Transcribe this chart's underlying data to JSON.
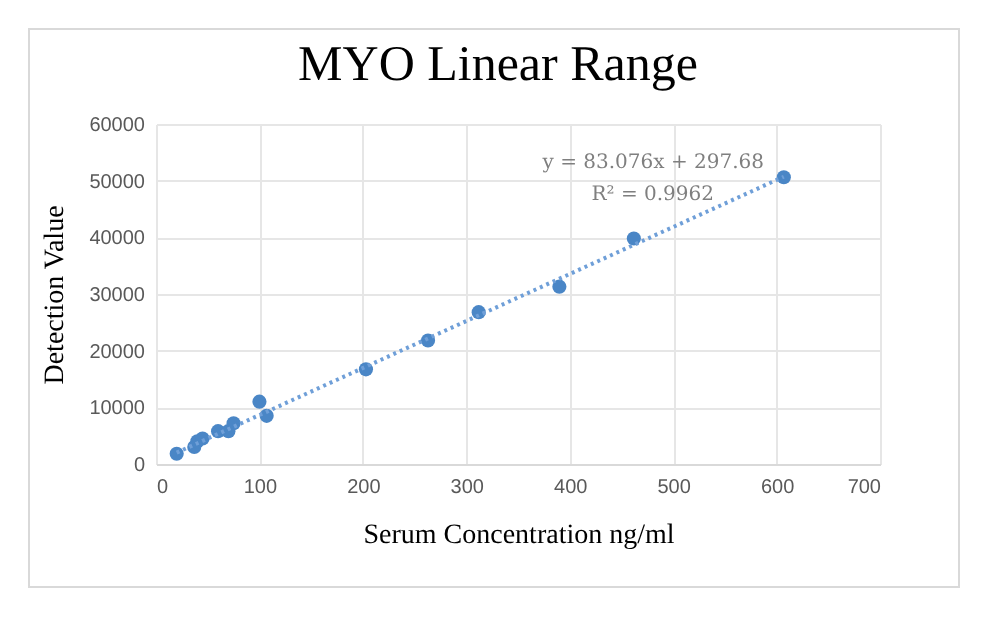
{
  "chart_data": {
    "type": "scatter",
    "title": "MYO Linear Range",
    "xlabel": "Serum Concentration ng/ml",
    "ylabel": "Detection Value",
    "xlim": [
      0,
      700
    ],
    "xticks": [
      0,
      100,
      200,
      300,
      400,
      500,
      600,
      700
    ],
    "ylim": [
      0,
      60000
    ],
    "yticks": [
      0,
      10000,
      20000,
      30000,
      40000,
      50000,
      60000
    ],
    "grid": true,
    "annotations": [
      "y = 83.076x + 297.68",
      "R² = 0.9962"
    ],
    "series": [
      {
        "marker": "circle",
        "color": "#4a86c6",
        "x": [
          20,
          37,
          40,
          45,
          60,
          70,
          75,
          100,
          107,
          203,
          263,
          312,
          390,
          462,
          607
        ],
        "values": [
          1800,
          3000,
          4000,
          4500,
          5800,
          5800,
          7200,
          11000,
          8500,
          16700,
          21800,
          26800,
          31300,
          39800,
          50600
        ]
      },
      {
        "type": "line",
        "marker": "none",
        "color": "#6f9fd8",
        "line_style": "dotted",
        "x": [
          20,
          607
        ],
        "values": [
          2000,
          50700
        ]
      }
    ]
  }
}
